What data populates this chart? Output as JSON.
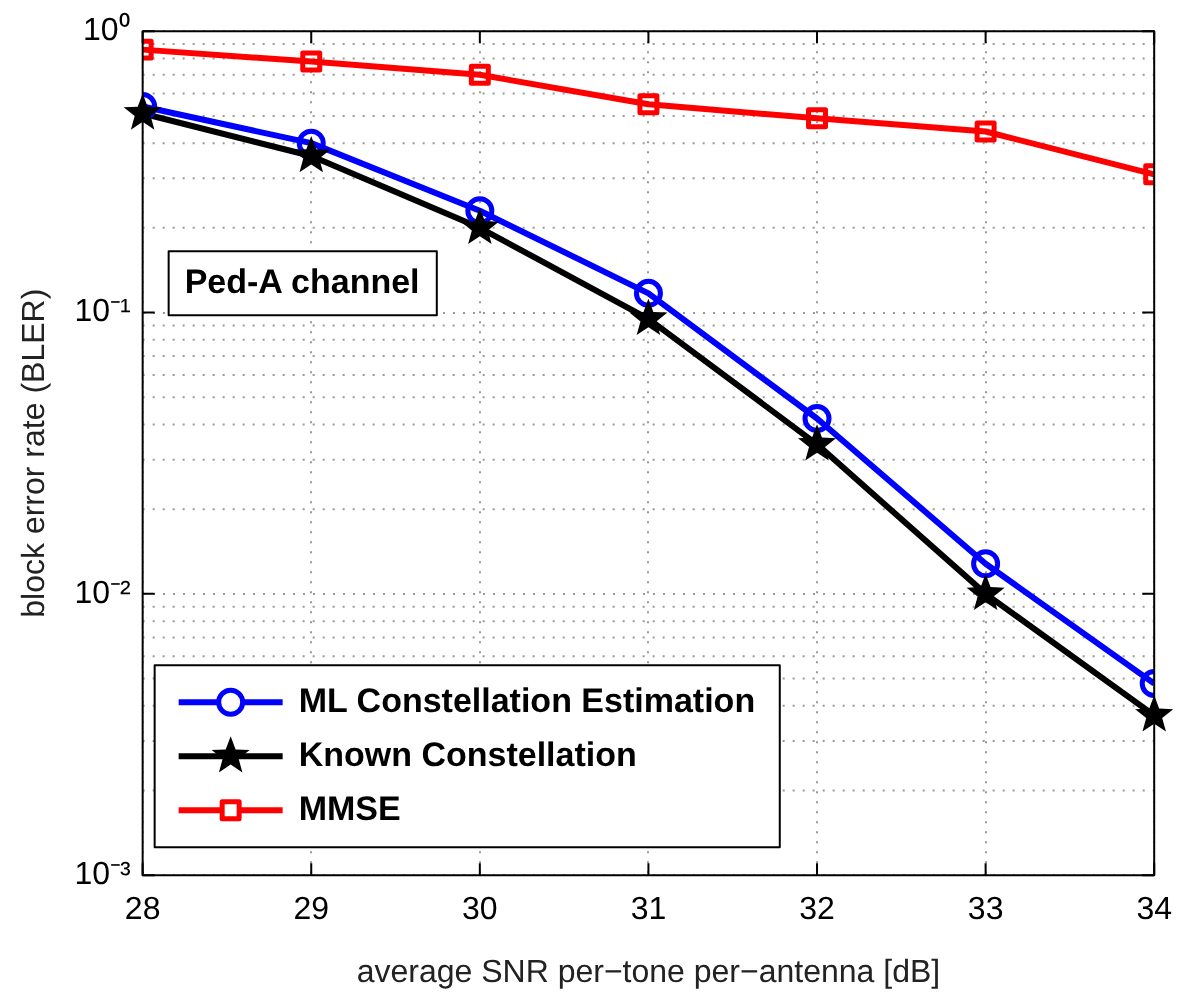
{
  "chart_data": {
    "type": "line",
    "xlabel": "average SNR per−tone per−antenna [dB]",
    "ylabel": "block error rate (BLER)",
    "x": [
      28,
      29,
      30,
      31,
      32,
      33,
      34
    ],
    "series": [
      {
        "name": "ML Constellation Estimation",
        "color": "#0000ff",
        "marker": "circle",
        "values": [
          0.54,
          0.4,
          0.23,
          0.117,
          0.042,
          0.0128,
          0.0048
        ]
      },
      {
        "name": "Known Constellation",
        "color": "#000000",
        "marker": "star",
        "values": [
          0.51,
          0.36,
          0.2,
          0.095,
          0.034,
          0.01,
          0.0037
        ]
      },
      {
        "name": "MMSE",
        "color": "#ff0000",
        "marker": "square",
        "values": [
          0.86,
          0.78,
          0.7,
          0.55,
          0.49,
          0.44,
          0.31
        ]
      }
    ],
    "xlim": [
      28,
      34
    ],
    "xticks": [
      28,
      29,
      30,
      31,
      32,
      33,
      34
    ],
    "ylim": [
      0.001,
      1
    ],
    "yticks": [
      {
        "value": 0.001,
        "label": "10⁻³"
      },
      {
        "value": 0.01,
        "label": "10⁻²"
      },
      {
        "value": 0.1,
        "label": "10⁻¹"
      },
      {
        "value": 1,
        "label": "10⁰"
      }
    ],
    "log": "y",
    "grid": true,
    "legend": "bottom left",
    "line_style": "solid",
    "annotations": [
      "Ped-A channel"
    ]
  }
}
